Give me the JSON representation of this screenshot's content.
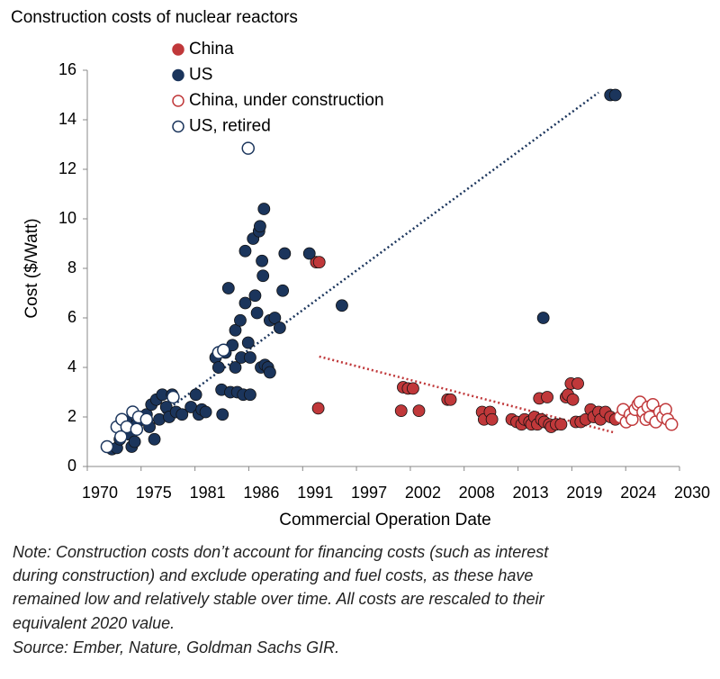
{
  "chart_data": {
    "type": "scatter",
    "title": "Construction costs of nuclear reactors",
    "x_label": "Commercial Operation Date",
    "y_label": "Cost ($/Watt)",
    "xlim": [
      1970,
      2030
    ],
    "ylim": [
      0,
      16
    ],
    "yticks": [
      0,
      2,
      4,
      6,
      8,
      10,
      12,
      14,
      16
    ],
    "xticks": [
      1970,
      {
        "value": 1975.45,
        "label": "1975"
      },
      {
        "value": 1980.91,
        "label": "1981"
      },
      {
        "value": 1986.36,
        "label": "1986"
      },
      {
        "value": 1991.82,
        "label": "1991"
      },
      {
        "value": 1997.27,
        "label": "1997"
      },
      {
        "value": 2002.73,
        "label": "2002"
      },
      {
        "value": 2008.18,
        "label": "2008"
      },
      {
        "value": 2013.64,
        "label": "2013"
      },
      {
        "value": 2019.09,
        "label": "2019"
      },
      {
        "value": 2024.55,
        "label": "2024"
      },
      2030
    ],
    "legend": "upper left",
    "series": [
      {
        "name": "China",
        "color": "#c0383a",
        "filled": true,
        "x": [
          1993.2,
          1993.5,
          1993.4,
          2001.8,
          2002,
          2002.5,
          2003,
          2003.6,
          2006.5,
          2006.8,
          2010,
          2010.2,
          2010.8,
          2011,
          2013,
          2013.5,
          2014,
          2014.3,
          2014.8,
          2015,
          2015.3,
          2015.6,
          2015.8,
          2016,
          2016.3,
          2016.6,
          2016.8,
          2017,
          2017.5,
          2018,
          2018.5,
          2018.7,
          2019,
          2019.2,
          2019.5,
          2019.7,
          2020,
          2020.5,
          2021,
          2021.3,
          2021.8,
          2022,
          2022.5,
          2023,
          2023.5
        ],
        "values": [
          8.25,
          8.25,
          2.35,
          2.25,
          3.2,
          3.15,
          3.15,
          2.25,
          2.7,
          2.7,
          2.2,
          1.9,
          2.2,
          1.9,
          1.9,
          1.8,
          1.7,
          1.9,
          1.8,
          1.7,
          2.0,
          1.7,
          2.75,
          1.9,
          1.8,
          2.8,
          1.7,
          1.6,
          1.7,
          1.7,
          2.8,
          2.9,
          3.35,
          2.7,
          1.8,
          3.35,
          1.8,
          1.9,
          2.3,
          2.0,
          2.2,
          1.9,
          2.2,
          2.0,
          1.9
        ],
        "trendline": {
          "x": [
            1993.5,
            2023.3
          ],
          "y": [
            4.44,
            1.38
          ]
        }
      },
      {
        "name": "US",
        "color": "#1b355c",
        "filled": true,
        "x": [
          1972.5,
          1973,
          1973.3,
          1973.8,
          1974,
          1974.3,
          1974.5,
          1974.8,
          1975,
          1975.3,
          1975.6,
          1976,
          1976.3,
          1976.5,
          1976.8,
          1977,
          1977.3,
          1977.6,
          1978,
          1978.3,
          1978.6,
          1979,
          1979.6,
          1980.5,
          1981,
          1981.3,
          1981.6,
          1982,
          1983,
          1983.3,
          1983.6,
          1983.7,
          1984,
          1984.3,
          1984.5,
          1984.7,
          1985,
          1985,
          1985.2,
          1985.5,
          1985.6,
          1985.8,
          1986,
          1986,
          1986.3,
          1986.5,
          1986.5,
          1986.8,
          1987,
          1987.2,
          1987.4,
          1987.5,
          1987.6,
          1987.7,
          1987.8,
          1987.9,
          1988,
          1988.3,
          1988.5,
          1988.5,
          1989,
          1989.5,
          1989.8,
          1990,
          1992.5,
          1995.8,
          2016.2,
          2023,
          2023.5
        ],
        "values": [
          0.7,
          0.75,
          1.1,
          1.5,
          1.8,
          1.3,
          0.8,
          1.0,
          1.7,
          2.0,
          1.9,
          2.1,
          1.6,
          2.5,
          1.1,
          2.7,
          1.9,
          2.9,
          2.4,
          2.0,
          2.9,
          2.2,
          2.1,
          2.4,
          2.9,
          2.1,
          2.3,
          2.2,
          4.4,
          4.0,
          3.1,
          2.1,
          4.6,
          7.2,
          3.0,
          4.9,
          5.5,
          4.0,
          3.0,
          5.9,
          4.4,
          2.9,
          6.6,
          8.7,
          5.0,
          4.4,
          2.9,
          9.2,
          6.9,
          6.2,
          9.5,
          9.7,
          4.0,
          8.3,
          7.7,
          10.4,
          4.1,
          4.0,
          3.8,
          5.9,
          6.0,
          5.6,
          7.1,
          8.6,
          8.6,
          6.5,
          6.0,
          15.0,
          15.0
        ],
        "trendline": {
          "x": [
            1972.5,
            2021.8
          ],
          "y": [
            0.65,
            15.1
          ]
        }
      },
      {
        "name": "China, under construction",
        "color": "#c0383a",
        "filled": false,
        "x": [
          2024,
          2024.3,
          2024.6,
          2025,
          2025.2,
          2025.5,
          2025.8,
          2026,
          2026.3,
          2026.6,
          2026.8,
          2027,
          2027.3,
          2027.6,
          2028,
          2028.3,
          2028.6,
          2028.8,
          2029.2
        ],
        "values": [
          2.0,
          2.3,
          1.8,
          2.1,
          1.9,
          2.3,
          2.5,
          2.6,
          2.2,
          1.9,
          2.4,
          2.0,
          2.5,
          1.8,
          2.2,
          2.0,
          2.3,
          1.9,
          1.7
        ]
      },
      {
        "name": "US, retired",
        "color": "#1b355c",
        "filled": false,
        "x": [
          1972,
          1973,
          1973.5,
          1974,
          1974.6,
          1975.2,
          1976,
          1978.7,
          1983.3,
          1983.8,
          1986.3,
          1973.4,
          1975
        ],
        "values": [
          0.8,
          1.6,
          1.9,
          1.6,
          2.2,
          2.0,
          1.9,
          2.8,
          4.6,
          4.7,
          12.85,
          1.2,
          1.5
        ]
      }
    ],
    "note": [
      "Note: Construction costs don’t account for financing costs (such as interest",
      "during construction) and exclude operating and fuel costs, as these have",
      "remained low and relatively stable over time. All costs are rescaled to their",
      "equivalent 2020 value."
    ],
    "source": "Source: Ember, Nature, Goldman Sachs GIR."
  }
}
